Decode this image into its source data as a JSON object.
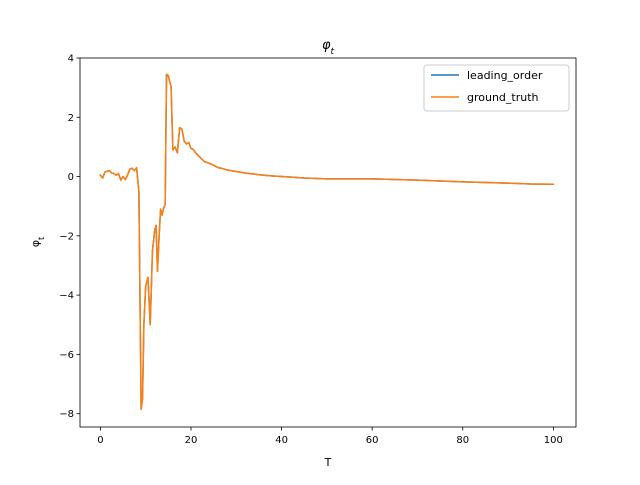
{
  "chart_data": {
    "type": "line",
    "title": "φ_t",
    "title_main": "φ",
    "title_sub": "t",
    "xlabel": "T",
    "ylabel": "φ_t",
    "ylabel_main": "φ",
    "ylabel_sub": "t",
    "xlim": [
      -4.5,
      105
    ],
    "ylim": [
      -8.45,
      4.0
    ],
    "xticks": [
      0,
      20,
      40,
      60,
      80,
      100
    ],
    "yticks": [
      -8,
      -6,
      -4,
      -2,
      0,
      2,
      4
    ],
    "xtick_labels": [
      "0",
      "20",
      "40",
      "60",
      "80",
      "100"
    ],
    "ytick_labels": [
      "−8",
      "−6",
      "−4",
      "−2",
      "0",
      "2",
      "4"
    ],
    "grid": false,
    "legend_position": "top-right",
    "series": [
      {
        "name": "leading_order",
        "color": "#1f77b4",
        "x": [
          0.0,
          0.5,
          1.0,
          1.5,
          2.0,
          2.5,
          3.0,
          3.5,
          4.0,
          4.5,
          5.0,
          5.5,
          6.0,
          6.5,
          7.0,
          7.5,
          8.0,
          8.5,
          9.0,
          9.3,
          9.6,
          10.0,
          10.5,
          11.0,
          11.5,
          12.0,
          12.3,
          12.6,
          13.0,
          13.3,
          13.6,
          14.0,
          14.3,
          14.6,
          15.0,
          15.3,
          15.6,
          16.0,
          16.5,
          17.0,
          17.5,
          18.0,
          18.5,
          19.0,
          19.5,
          20.0,
          20.5,
          21.0,
          22.0,
          23.0,
          24.0,
          25.0,
          26.0,
          27.0,
          28.0,
          30.0,
          32.0,
          35.0,
          38.0,
          40.0,
          45.0,
          50.0,
          55.0,
          60.0,
          65.0,
          70.0,
          75.0,
          80.0,
          85.0,
          90.0,
          95.0,
          100.0
        ],
        "y": [
          0.05,
          -0.05,
          0.15,
          0.18,
          0.2,
          0.12,
          0.1,
          0.05,
          0.1,
          -0.12,
          0.0,
          -0.1,
          0.05,
          0.25,
          0.28,
          0.2,
          0.3,
          -0.5,
          -7.85,
          -7.5,
          -5.0,
          -3.7,
          -3.4,
          -5.0,
          -2.5,
          -1.8,
          -1.65,
          -3.2,
          -1.9,
          -1.1,
          -1.3,
          -1.05,
          -0.95,
          3.45,
          3.4,
          3.2,
          3.05,
          0.9,
          1.0,
          0.8,
          1.65,
          1.6,
          1.2,
          1.1,
          1.15,
          0.95,
          0.92,
          0.8,
          0.65,
          0.5,
          0.45,
          0.38,
          0.3,
          0.27,
          0.22,
          0.17,
          0.12,
          0.06,
          0.02,
          0.0,
          -0.05,
          -0.08,
          -0.08,
          -0.08,
          -0.1,
          -0.12,
          -0.15,
          -0.18,
          -0.2,
          -0.22,
          -0.25,
          -0.26
        ]
      },
      {
        "name": "ground_truth",
        "color": "#ff7f0e",
        "x": [
          0.0,
          0.5,
          1.0,
          1.5,
          2.0,
          2.5,
          3.0,
          3.5,
          4.0,
          4.5,
          5.0,
          5.5,
          6.0,
          6.5,
          7.0,
          7.5,
          8.0,
          8.5,
          9.0,
          9.3,
          9.6,
          10.0,
          10.5,
          11.0,
          11.5,
          12.0,
          12.3,
          12.6,
          13.0,
          13.3,
          13.6,
          14.0,
          14.3,
          14.6,
          15.0,
          15.3,
          15.6,
          16.0,
          16.5,
          17.0,
          17.5,
          18.0,
          18.5,
          19.0,
          19.5,
          20.0,
          20.5,
          21.0,
          22.0,
          23.0,
          24.0,
          25.0,
          26.0,
          27.0,
          28.0,
          30.0,
          32.0,
          35.0,
          38.0,
          40.0,
          45.0,
          50.0,
          55.0,
          60.0,
          65.0,
          70.0,
          75.0,
          80.0,
          85.0,
          90.0,
          95.0,
          100.0
        ],
        "y": [
          0.05,
          -0.05,
          0.15,
          0.18,
          0.2,
          0.12,
          0.1,
          0.05,
          0.1,
          -0.12,
          0.0,
          -0.1,
          0.05,
          0.25,
          0.28,
          0.2,
          0.3,
          -0.5,
          -7.85,
          -7.5,
          -5.0,
          -3.7,
          -3.4,
          -5.0,
          -2.5,
          -1.8,
          -1.65,
          -3.2,
          -1.9,
          -1.1,
          -1.3,
          -1.05,
          -0.95,
          3.45,
          3.4,
          3.2,
          3.05,
          0.9,
          1.0,
          0.8,
          1.65,
          1.6,
          1.2,
          1.1,
          1.15,
          0.95,
          0.92,
          0.8,
          0.65,
          0.5,
          0.45,
          0.38,
          0.3,
          0.27,
          0.22,
          0.17,
          0.12,
          0.06,
          0.02,
          0.0,
          -0.05,
          -0.08,
          -0.08,
          -0.08,
          -0.1,
          -0.12,
          -0.15,
          -0.18,
          -0.2,
          -0.22,
          -0.25,
          -0.26
        ]
      }
    ]
  }
}
